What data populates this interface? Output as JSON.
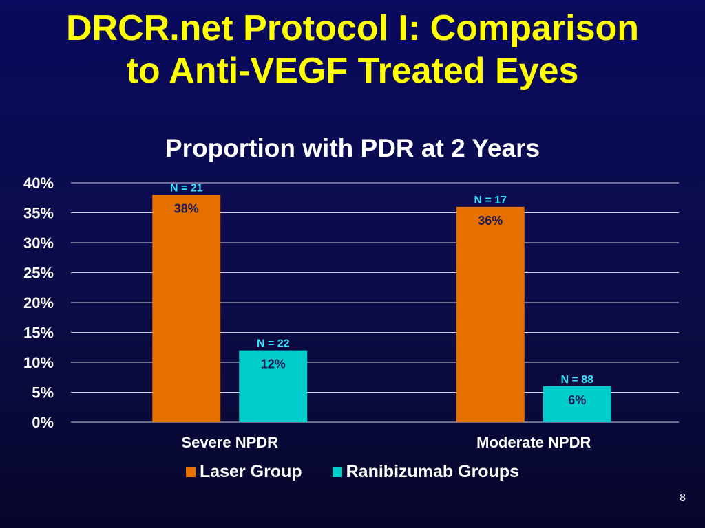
{
  "slide": {
    "title_line1": "DRCR.net Protocol I: Comparison",
    "title_line2": "to Anti-VEGF Treated Eyes",
    "page_number": "8"
  },
  "colors": {
    "title": "#ffff00",
    "laser": "#e57000",
    "ranibizumab": "#00cccc",
    "n_label": "#33e6ff",
    "value_label": "#1a1a55",
    "grid": "#d0d0e0"
  },
  "chart_data": {
    "type": "bar",
    "title": "Proportion with PDR at 2 Years",
    "categories": [
      "Severe NPDR",
      "Moderate NPDR"
    ],
    "series": [
      {
        "name": "Laser Group",
        "values": [
          38,
          36
        ],
        "labels": [
          "38%",
          "36%"
        ],
        "n_labels": [
          "N = 21",
          "N = 17"
        ]
      },
      {
        "name": "Ranibizumab Groups",
        "values": [
          12,
          6
        ],
        "labels": [
          "12%",
          "6%"
        ],
        "n_labels": [
          "N = 22",
          "N = 88"
        ]
      }
    ],
    "ylim": [
      0,
      40
    ],
    "yticks": [
      0,
      5,
      10,
      15,
      20,
      25,
      30,
      35,
      40
    ],
    "ytick_labels": [
      "0%",
      "5%",
      "10%",
      "15%",
      "20%",
      "25%",
      "30%",
      "35%",
      "40%"
    ],
    "grid": true,
    "legend_position": "bottom"
  }
}
